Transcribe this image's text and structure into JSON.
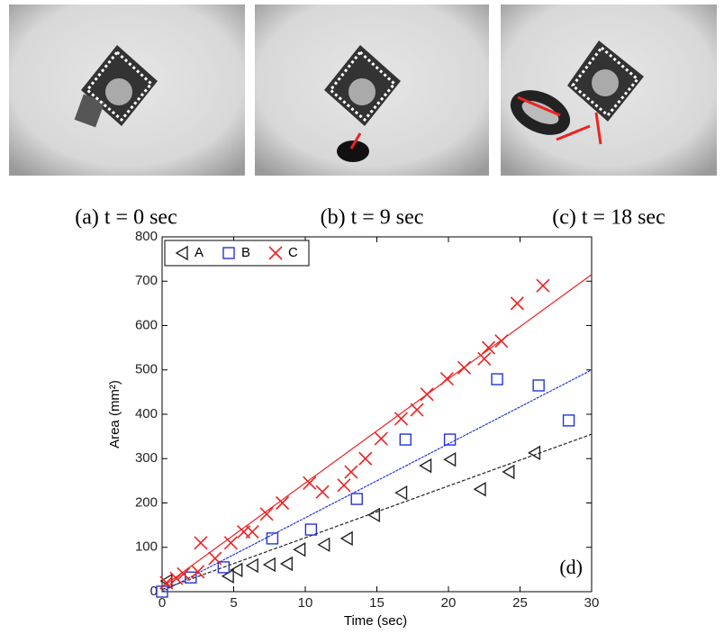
{
  "captions": [
    "(a) t = 0 sec",
    "(b) t = 9 sec",
    "(c) t = 18 sec"
  ],
  "chart_data": {
    "type": "scatter",
    "annotation": "(d)",
    "x_label": "Time (sec)",
    "y_label": "Area (mm²)",
    "xlim": [
      0,
      30
    ],
    "ylim": [
      0,
      800
    ],
    "xticks": [
      0,
      5,
      10,
      15,
      20,
      25,
      30
    ],
    "yticks": [
      0,
      100,
      200,
      300,
      400,
      500,
      600,
      700,
      800
    ],
    "legend": "top-left",
    "series": [
      {
        "name": "A",
        "color": "#222222",
        "marker": "triangle-left",
        "x": [
          0.3,
          4.6,
          5.2,
          6.3,
          7.5,
          8.7,
          9.6,
          11.3,
          12.9,
          14.8,
          16.7,
          18.4,
          20.1,
          22.2,
          24.2,
          26
        ],
        "values": [
          24,
          35,
          49,
          59,
          61,
          63,
          95,
          106,
          120,
          173,
          223,
          284,
          298,
          231,
          270,
          313
        ],
        "trend": {
          "x": [
            0,
            30
          ],
          "values": [
            5,
            355
          ]
        }
      },
      {
        "name": "B",
        "color": "#2233dd",
        "marker": "square",
        "x": [
          0,
          2,
          4.3,
          7.7,
          10.4,
          13.6,
          17,
          20.1,
          23.4,
          26.3,
          28.4
        ],
        "values": [
          0,
          32,
          55,
          120,
          140,
          209,
          343,
          343,
          479,
          465,
          386
        ],
        "trend": {
          "x": [
            0,
            30
          ],
          "values": [
            0,
            500
          ]
        }
      },
      {
        "name": "C",
        "color": "#ee2222",
        "marker": "x",
        "x": [
          0.3,
          1,
          1.5,
          2.5,
          2.7,
          3.7,
          4.8,
          5.7,
          6.3,
          7.3,
          8.4,
          10.3,
          11.2,
          12.7,
          13.2,
          14.2,
          15.3,
          16.7,
          17.8,
          18.5,
          19.9,
          21.1,
          22.5,
          22.8,
          23.7,
          24.8,
          26.6
        ],
        "values": [
          20,
          30,
          40,
          45,
          110,
          75,
          110,
          135,
          135,
          175,
          200,
          245,
          225,
          240,
          270,
          300,
          345,
          390,
          410,
          445,
          480,
          505,
          525,
          550,
          565,
          650,
          690
        ],
        "trend": {
          "x": [
            0,
            30
          ],
          "values": [
            10,
            715
          ]
        }
      }
    ]
  }
}
